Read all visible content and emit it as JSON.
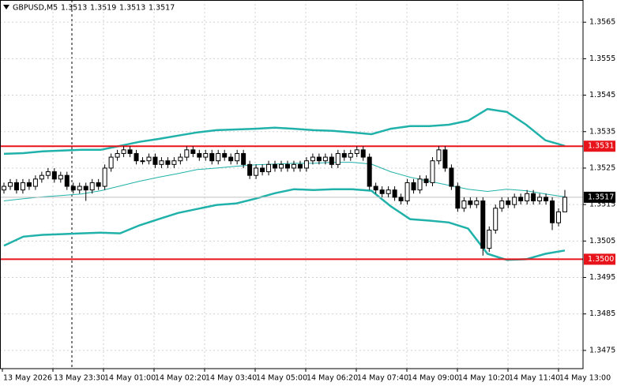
{
  "chart_data": {
    "type": "candlestick",
    "symbol": "GBPUSD,M5",
    "ylim": [
      1.347,
      1.35711
    ],
    "yticks": [
      1.3565,
      1.3555,
      1.3545,
      1.3535,
      1.3525,
      1.3515,
      1.3505,
      1.3495,
      1.3485,
      1.3475
    ],
    "x_labels": [
      "13 May 2026",
      "13 May 23:30",
      "14 May 01:00",
      "14 May 02:20",
      "14 May 03:40",
      "14 May 05:00",
      "14 May 06:20",
      "14 May 07:40",
      "14 May 09:00",
      "14 May 10:20",
      "14 May 11:40",
      "14 May 13:00"
    ],
    "grid": true,
    "open": [
      1.3519,
      1.352,
      1.3521,
      1.3519,
      1.3521,
      1.352,
      1.3522,
      1.3523,
      1.3524,
      1.3522,
      1.3523,
      1.352,
      1.3519,
      1.352,
      1.3519,
      1.3521,
      1.352,
      1.3525,
      1.3528,
      1.3529,
      1.353,
      1.3529,
      1.3527,
      1.3527,
      1.3528,
      1.3526,
      1.3527,
      1.3526,
      1.3527,
      1.3528,
      1.353,
      1.3529,
      1.3528,
      1.3529,
      1.3527,
      1.3529,
      1.3528,
      1.3527,
      1.3529,
      1.3526,
      1.3523,
      1.3525,
      1.3524,
      1.3526,
      1.3525,
      1.3526,
      1.3525,
      1.3526,
      1.3525,
      1.3527,
      1.3528,
      1.3527,
      1.3528,
      1.3526,
      1.3529,
      1.3528,
      1.3529,
      1.353,
      1.3528,
      1.352,
      1.3519,
      1.3518,
      1.3519,
      1.3517,
      1.3516,
      1.3521,
      1.3519,
      1.3522,
      1.3521,
      1.3527,
      1.353,
      1.3525,
      1.352,
      1.3514,
      1.3516,
      1.3515,
      1.3516,
      1.3503,
      1.3508,
      1.3514,
      1.3516,
      1.3515,
      1.3517,
      1.3516,
      1.3518,
      1.3516,
      1.3517,
      1.3516,
      1.351,
      1.3513
    ],
    "high": [
      1.3521,
      1.3522,
      1.3522,
      1.3522,
      1.3522,
      1.3523,
      1.3524,
      1.3525,
      1.3525,
      1.3524,
      1.3524,
      1.3521,
      1.3521,
      1.3521,
      1.3522,
      1.3522,
      1.3526,
      1.3529,
      1.353,
      1.3531,
      1.3531,
      1.353,
      1.3528,
      1.3529,
      1.3529,
      1.3528,
      1.3528,
      1.3528,
      1.3529,
      1.3531,
      1.3531,
      1.353,
      1.353,
      1.353,
      1.353,
      1.353,
      1.3529,
      1.353,
      1.353,
      1.3527,
      1.3526,
      1.3526,
      1.3527,
      1.3527,
      1.3527,
      1.3527,
      1.3527,
      1.3527,
      1.3528,
      1.3529,
      1.3529,
      1.3529,
      1.3529,
      1.353,
      1.353,
      1.353,
      1.3531,
      1.3531,
      1.3529,
      1.3521,
      1.352,
      1.352,
      1.352,
      1.3518,
      1.3522,
      1.3522,
      1.3523,
      1.3523,
      1.3528,
      1.3531,
      1.3531,
      1.3526,
      1.3521,
      1.3517,
      1.3517,
      1.3517,
      1.3517,
      1.3509,
      1.3515,
      1.3517,
      1.3517,
      1.3518,
      1.3518,
      1.3519,
      1.3519,
      1.3518,
      1.3518,
      1.3517,
      1.3514,
      1.3519
    ],
    "low": [
      1.3518,
      1.3519,
      1.3518,
      1.3518,
      1.3519,
      1.3519,
      1.3521,
      1.3522,
      1.3521,
      1.3521,
      1.3519,
      1.3518,
      1.3518,
      1.3516,
      1.3518,
      1.3519,
      1.3519,
      1.3524,
      1.3527,
      1.3528,
      1.3528,
      1.3526,
      1.3526,
      1.3526,
      1.3525,
      1.3525,
      1.3525,
      1.3525,
      1.3526,
      1.3527,
      1.3528,
      1.3527,
      1.3527,
      1.3526,
      1.3526,
      1.3527,
      1.3526,
      1.3526,
      1.3525,
      1.3522,
      1.3522,
      1.3523,
      1.3523,
      1.3524,
      1.3524,
      1.3524,
      1.3524,
      1.3524,
      1.3524,
      1.3526,
      1.3526,
      1.3526,
      1.3525,
      1.3525,
      1.3527,
      1.3527,
      1.3528,
      1.3527,
      1.3519,
      1.3518,
      1.3517,
      1.3517,
      1.3516,
      1.3515,
      1.3515,
      1.3518,
      1.3518,
      1.352,
      1.352,
      1.3526,
      1.3524,
      1.3519,
      1.3513,
      1.3513,
      1.3514,
      1.3514,
      1.3501,
      1.3502,
      1.3507,
      1.3513,
      1.3514,
      1.3514,
      1.3515,
      1.3515,
      1.3515,
      1.3515,
      1.3515,
      1.3508,
      1.3509,
      1.3513
    ],
    "close": [
      1.352,
      1.3521,
      1.3519,
      1.3521,
      1.352,
      1.3522,
      1.3523,
      1.3524,
      1.3522,
      1.3523,
      1.352,
      1.3519,
      1.352,
      1.3519,
      1.3521,
      1.352,
      1.3525,
      1.3528,
      1.3529,
      1.353,
      1.3529,
      1.3527,
      1.3527,
      1.3528,
      1.3526,
      1.3527,
      1.3526,
      1.3527,
      1.3528,
      1.353,
      1.3529,
      1.3528,
      1.3529,
      1.3527,
      1.3529,
      1.3528,
      1.3527,
      1.3529,
      1.3526,
      1.3523,
      1.3525,
      1.3524,
      1.3526,
      1.3525,
      1.3526,
      1.3525,
      1.3526,
      1.3525,
      1.3527,
      1.3528,
      1.3527,
      1.3528,
      1.3526,
      1.3529,
      1.3528,
      1.3529,
      1.353,
      1.3528,
      1.352,
      1.3519,
      1.3518,
      1.3519,
      1.3517,
      1.3516,
      1.3521,
      1.3519,
      1.3522,
      1.3521,
      1.3527,
      1.353,
      1.3525,
      1.352,
      1.3514,
      1.3516,
      1.3515,
      1.3516,
      1.3503,
      1.3508,
      1.3514,
      1.3516,
      1.3515,
      1.3517,
      1.3516,
      1.3518,
      1.3516,
      1.3517,
      1.3516,
      1.351,
      1.3513,
      1.3517
    ],
    "candle_colors": {
      "up": "#ffffff",
      "down": "#000000",
      "outline": "#000000"
    },
    "bands": [
      {
        "color": "#20b2aa",
        "width": 2.5,
        "values": [
          1.35289,
          1.35291,
          1.35296,
          1.35298,
          1.353,
          1.353,
          1.35311,
          1.35322,
          1.3533,
          1.35339,
          1.35348,
          1.35354,
          1.35356,
          1.35358,
          1.35361,
          1.35358,
          1.35354,
          1.35352,
          1.35348,
          1.35343,
          1.35358,
          1.35365,
          1.35365,
          1.35369,
          1.3538,
          1.35412,
          1.35404,
          1.35369,
          1.35326,
          1.35311
        ]
      },
      {
        "color": "#20b2aa",
        "width": 1,
        "values": [
          1.3516,
          1.35166,
          1.35171,
          1.35175,
          1.35179,
          1.35188,
          1.35201,
          1.35214,
          1.35225,
          1.35235,
          1.35246,
          1.3525,
          1.35255,
          1.35259,
          1.35261,
          1.35263,
          1.35263,
          1.35266,
          1.35266,
          1.35261,
          1.3524,
          1.35225,
          1.35214,
          1.35203,
          1.35192,
          1.35186,
          1.35192,
          1.35188,
          1.35179,
          1.35171
        ]
      },
      {
        "color": "#20b2aa",
        "width": 2.5,
        "values": [
          1.35037,
          1.35062,
          1.35067,
          1.35069,
          1.35071,
          1.35073,
          1.35071,
          1.35093,
          1.3511,
          1.35127,
          1.35138,
          1.35149,
          1.35153,
          1.35166,
          1.35181,
          1.35192,
          1.3519,
          1.35192,
          1.35192,
          1.35188,
          1.35145,
          1.3511,
          1.35106,
          1.35101,
          1.35084,
          1.35015,
          1.34998,
          1.35,
          1.35015,
          1.35024
        ]
      }
    ],
    "levels": [
      1.3531,
      {
        "value": 1.35,
        "label": "1.3500"
      }
    ],
    "level_color": "#e8141b",
    "bid": 1.3517,
    "bid_color": "#000000"
  }
}
